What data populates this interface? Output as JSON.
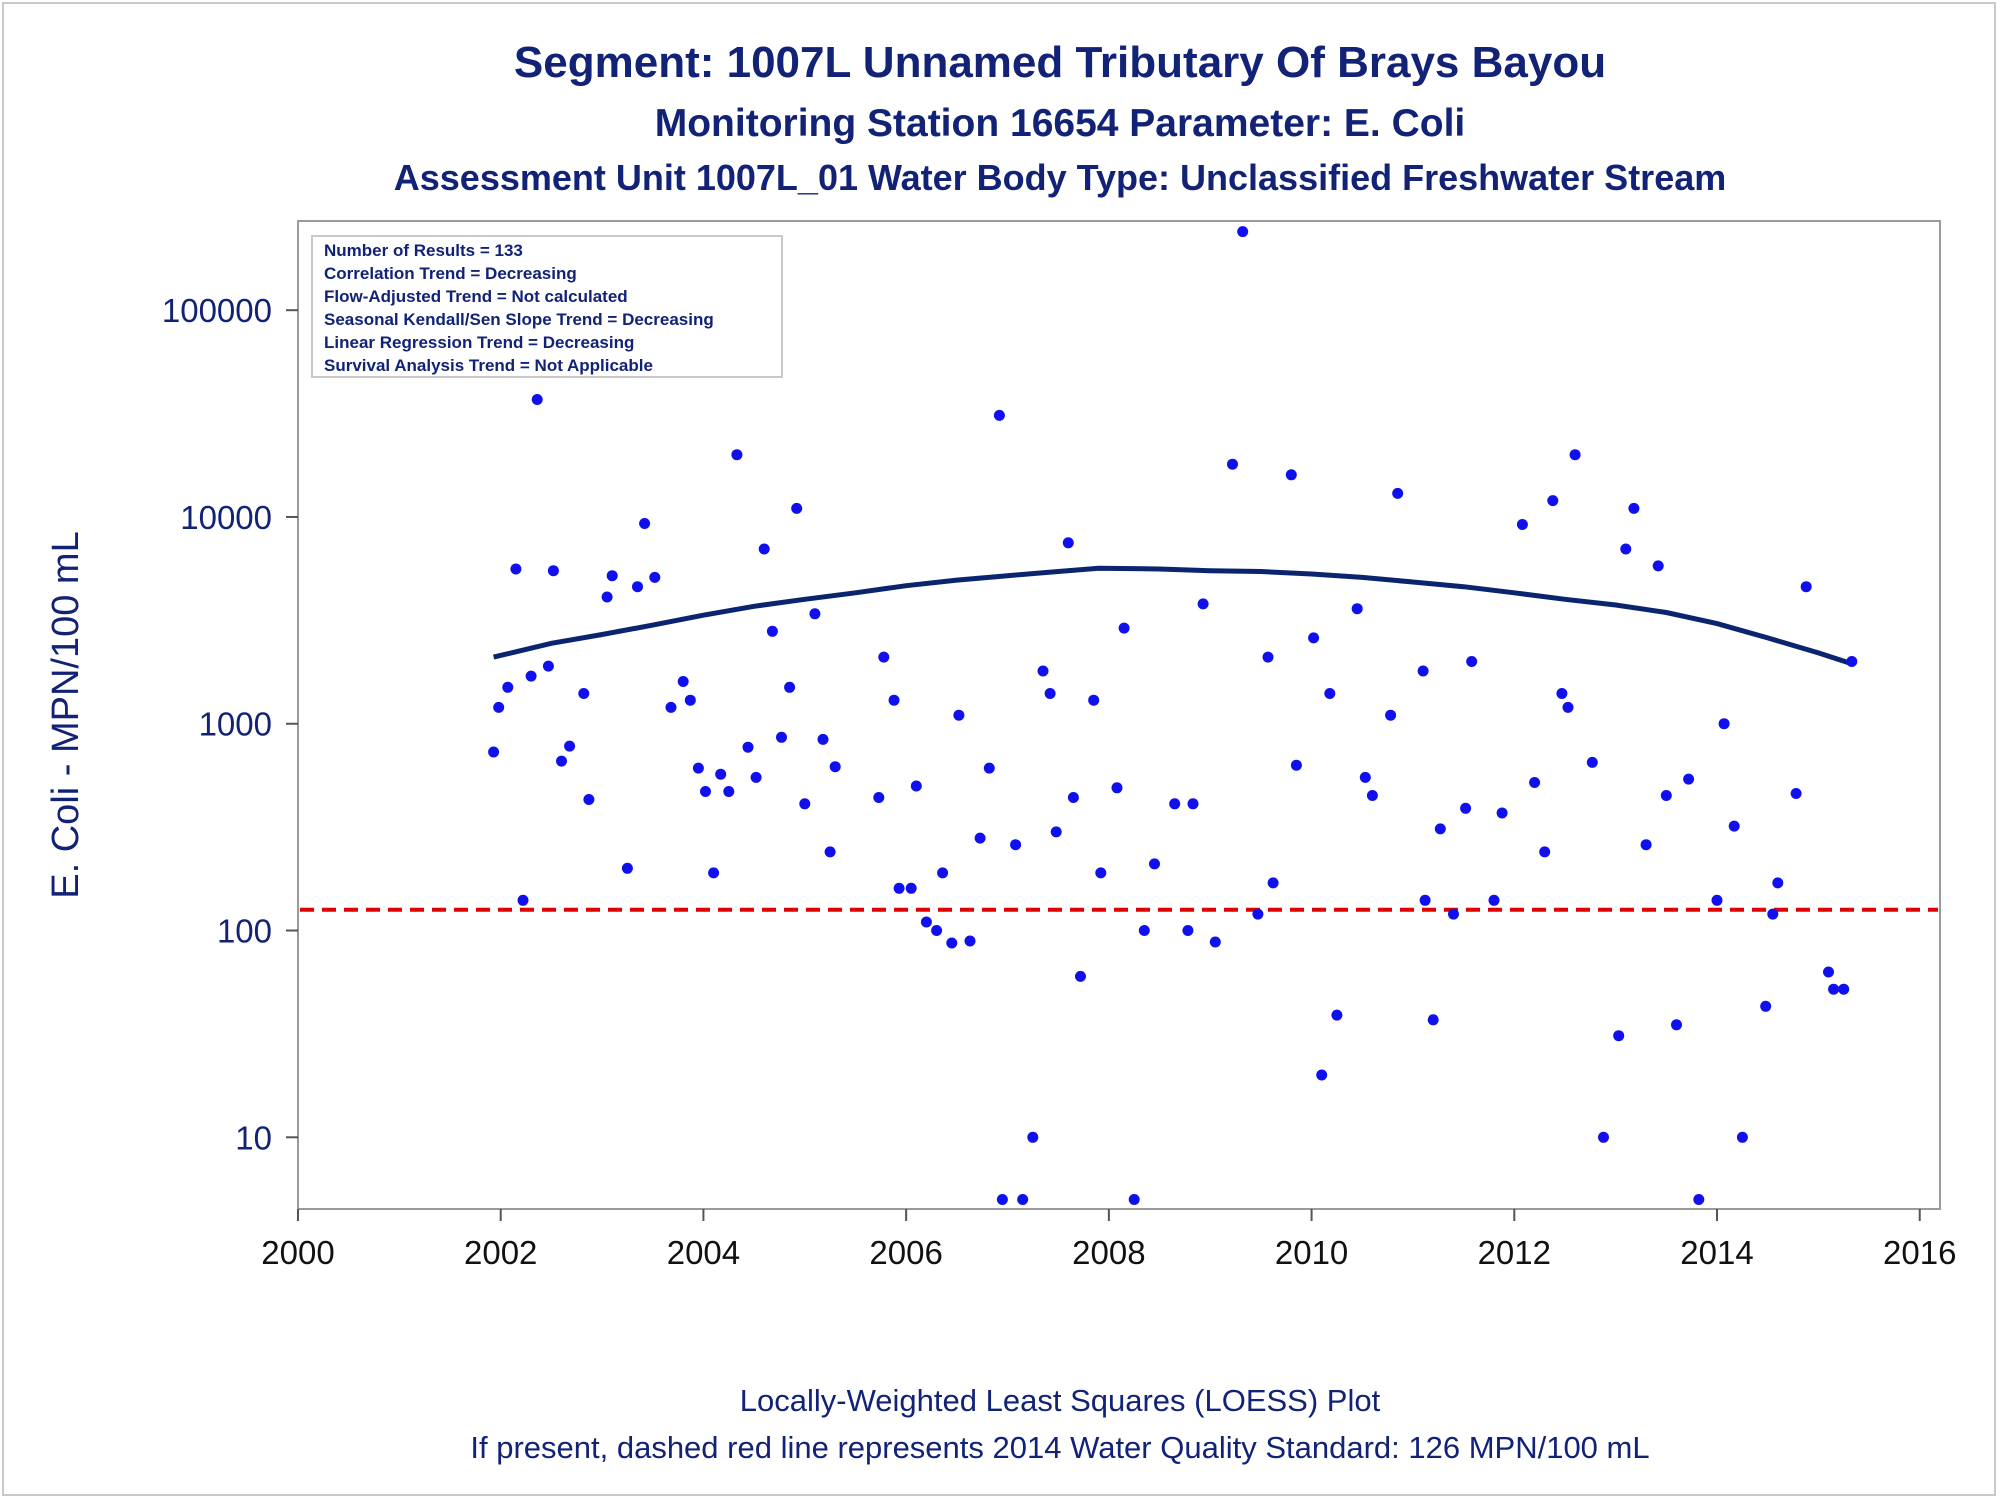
{
  "title": "Segment: 1007L  Unnamed Tributary Of Brays Bayou",
  "subtitle1": "Monitoring Station 16654 Parameter: E. Coli",
  "subtitle2": "Assessment Unit 1007L_01   Water Body Type: Unclassified Freshwater Stream",
  "footer1": "Locally-Weighted Least Squares (LOESS) Plot",
  "footer2": "If present, dashed red line represents 2014 Water Quality Standard: 126 MPN/100 mL",
  "legend_lines": [
    "Number of Results = 133",
    "Correlation Trend = Decreasing",
    "Flow-Adjusted Trend = Not calculated",
    "Seasonal Kendall/Sen Slope Trend = Decreasing",
    "Linear Regression Trend = Decreasing",
    "Survival Analysis Trend = Not Applicable"
  ],
  "colors": {
    "points": "#1010ee",
    "loess": "#0b2470",
    "standard": "#dd0000",
    "text": "#112277"
  },
  "chart_data": {
    "type": "scatter",
    "ylabel": "E. Coli - MPN/100 mL",
    "xlabel": "",
    "y_scale": "log",
    "xlim": [
      2000,
      2016.2
    ],
    "ylim": [
      4.5,
      270000
    ],
    "x_ticks": [
      2000,
      2002,
      2004,
      2006,
      2008,
      2010,
      2012,
      2014,
      2016
    ],
    "y_ticks": [
      10,
      100,
      1000,
      10000,
      100000
    ],
    "y_tick_labels": [
      "10",
      "100",
      "1000",
      "10000",
      "100000"
    ],
    "grid": false,
    "legend_position": "top-left",
    "standard_line": 126,
    "points": [
      [
        2001.93,
        730
      ],
      [
        2001.98,
        1200
      ],
      [
        2002.07,
        1500
      ],
      [
        2002.15,
        5600
      ],
      [
        2002.22,
        140
      ],
      [
        2002.3,
        1700
      ],
      [
        2002.36,
        37000
      ],
      [
        2002.47,
        1900
      ],
      [
        2002.52,
        5500
      ],
      [
        2002.6,
        660
      ],
      [
        2002.68,
        780
      ],
      [
        2002.82,
        1400
      ],
      [
        2002.87,
        430
      ],
      [
        2003.05,
        4100
      ],
      [
        2003.1,
        5200
      ],
      [
        2003.25,
        200
      ],
      [
        2003.35,
        4600
      ],
      [
        2003.42,
        9300
      ],
      [
        2003.52,
        5100
      ],
      [
        2003.68,
        1200
      ],
      [
        2003.8,
        1600
      ],
      [
        2003.87,
        1300
      ],
      [
        2003.95,
        610
      ],
      [
        2004.02,
        470
      ],
      [
        2004.1,
        190
      ],
      [
        2004.17,
        570
      ],
      [
        2004.25,
        470
      ],
      [
        2004.33,
        20000
      ],
      [
        2004.44,
        770
      ],
      [
        2004.52,
        550
      ],
      [
        2004.6,
        7000
      ],
      [
        2004.68,
        2800
      ],
      [
        2004.77,
        860
      ],
      [
        2004.85,
        1500
      ],
      [
        2004.92,
        11000
      ],
      [
        2005.0,
        410
      ],
      [
        2005.1,
        3400
      ],
      [
        2005.18,
        840
      ],
      [
        2005.25,
        240
      ],
      [
        2005.3,
        620
      ],
      [
        2005.73,
        440
      ],
      [
        2005.78,
        2100
      ],
      [
        2005.88,
        1300
      ],
      [
        2005.93,
        160
      ],
      [
        2006.05,
        160
      ],
      [
        2006.1,
        500
      ],
      [
        2006.2,
        110
      ],
      [
        2006.3,
        100
      ],
      [
        2006.36,
        190
      ],
      [
        2006.45,
        87
      ],
      [
        2006.52,
        1100
      ],
      [
        2006.63,
        89
      ],
      [
        2006.73,
        280
      ],
      [
        2006.82,
        610
      ],
      [
        2006.92,
        31000
      ],
      [
        2006.95,
        5
      ],
      [
        2007.08,
        260
      ],
      [
        2007.15,
        5
      ],
      [
        2007.25,
        10
      ],
      [
        2007.35,
        1800
      ],
      [
        2007.42,
        1400
      ],
      [
        2007.48,
        300
      ],
      [
        2007.6,
        7500
      ],
      [
        2007.65,
        440
      ],
      [
        2007.72,
        60
      ],
      [
        2007.85,
        1300
      ],
      [
        2007.92,
        190
      ],
      [
        2008.08,
        490
      ],
      [
        2008.15,
        2900
      ],
      [
        2008.25,
        5
      ],
      [
        2008.35,
        100
      ],
      [
        2008.45,
        210
      ],
      [
        2008.65,
        410
      ],
      [
        2008.78,
        100
      ],
      [
        2008.83,
        410
      ],
      [
        2008.93,
        3800
      ],
      [
        2009.05,
        88
      ],
      [
        2009.22,
        18000
      ],
      [
        2009.32,
        240000
      ],
      [
        2009.47,
        120
      ],
      [
        2009.57,
        2100
      ],
      [
        2009.62,
        170
      ],
      [
        2009.8,
        16000
      ],
      [
        2009.85,
        630
      ],
      [
        2010.02,
        2600
      ],
      [
        2010.1,
        20
      ],
      [
        2010.18,
        1400
      ],
      [
        2010.25,
        39
      ],
      [
        2010.45,
        3600
      ],
      [
        2010.53,
        550
      ],
      [
        2010.6,
        450
      ],
      [
        2010.78,
        1100
      ],
      [
        2010.85,
        13000
      ],
      [
        2011.1,
        1800
      ],
      [
        2011.12,
        140
      ],
      [
        2011.2,
        37
      ],
      [
        2011.27,
        310
      ],
      [
        2011.4,
        120
      ],
      [
        2011.52,
        390
      ],
      [
        2011.58,
        2000
      ],
      [
        2011.8,
        140
      ],
      [
        2011.88,
        370
      ],
      [
        2012.08,
        9200
      ],
      [
        2012.2,
        520
      ],
      [
        2012.3,
        240
      ],
      [
        2012.38,
        12000
      ],
      [
        2012.47,
        1400
      ],
      [
        2012.53,
        1200
      ],
      [
        2012.6,
        20000
      ],
      [
        2012.77,
        650
      ],
      [
        2012.88,
        10
      ],
      [
        2013.03,
        31
      ],
      [
        2013.1,
        7000
      ],
      [
        2013.18,
        11000
      ],
      [
        2013.3,
        260
      ],
      [
        2013.42,
        5800
      ],
      [
        2013.5,
        450
      ],
      [
        2013.6,
        35
      ],
      [
        2013.72,
        540
      ],
      [
        2013.82,
        5
      ],
      [
        2014.0,
        140
      ],
      [
        2014.07,
        1000
      ],
      [
        2014.17,
        320
      ],
      [
        2014.25,
        10
      ],
      [
        2014.48,
        43
      ],
      [
        2014.55,
        120
      ],
      [
        2014.6,
        170
      ],
      [
        2014.78,
        460
      ],
      [
        2014.88,
        4600
      ],
      [
        2015.1,
        63
      ],
      [
        2015.15,
        52
      ],
      [
        2015.25,
        52
      ],
      [
        2015.33,
        2000
      ]
    ],
    "loess": [
      [
        2001.93,
        2100
      ],
      [
        2002.5,
        2450
      ],
      [
        2003,
        2700
      ],
      [
        2003.5,
        3000
      ],
      [
        2004,
        3350
      ],
      [
        2004.5,
        3700
      ],
      [
        2005,
        4000
      ],
      [
        2005.5,
        4300
      ],
      [
        2006,
        4650
      ],
      [
        2006.5,
        4950
      ],
      [
        2007,
        5200
      ],
      [
        2007.5,
        5450
      ],
      [
        2007.9,
        5650
      ],
      [
        2008.5,
        5600
      ],
      [
        2009,
        5500
      ],
      [
        2009.5,
        5450
      ],
      [
        2010,
        5300
      ],
      [
        2010.5,
        5100
      ],
      [
        2011,
        4850
      ],
      [
        2011.5,
        4600
      ],
      [
        2012,
        4300
      ],
      [
        2012.5,
        4000
      ],
      [
        2013,
        3750
      ],
      [
        2013.5,
        3450
      ],
      [
        2014,
        3050
      ],
      [
        2014.5,
        2600
      ],
      [
        2015,
        2200
      ],
      [
        2015.33,
        1950
      ]
    ]
  }
}
